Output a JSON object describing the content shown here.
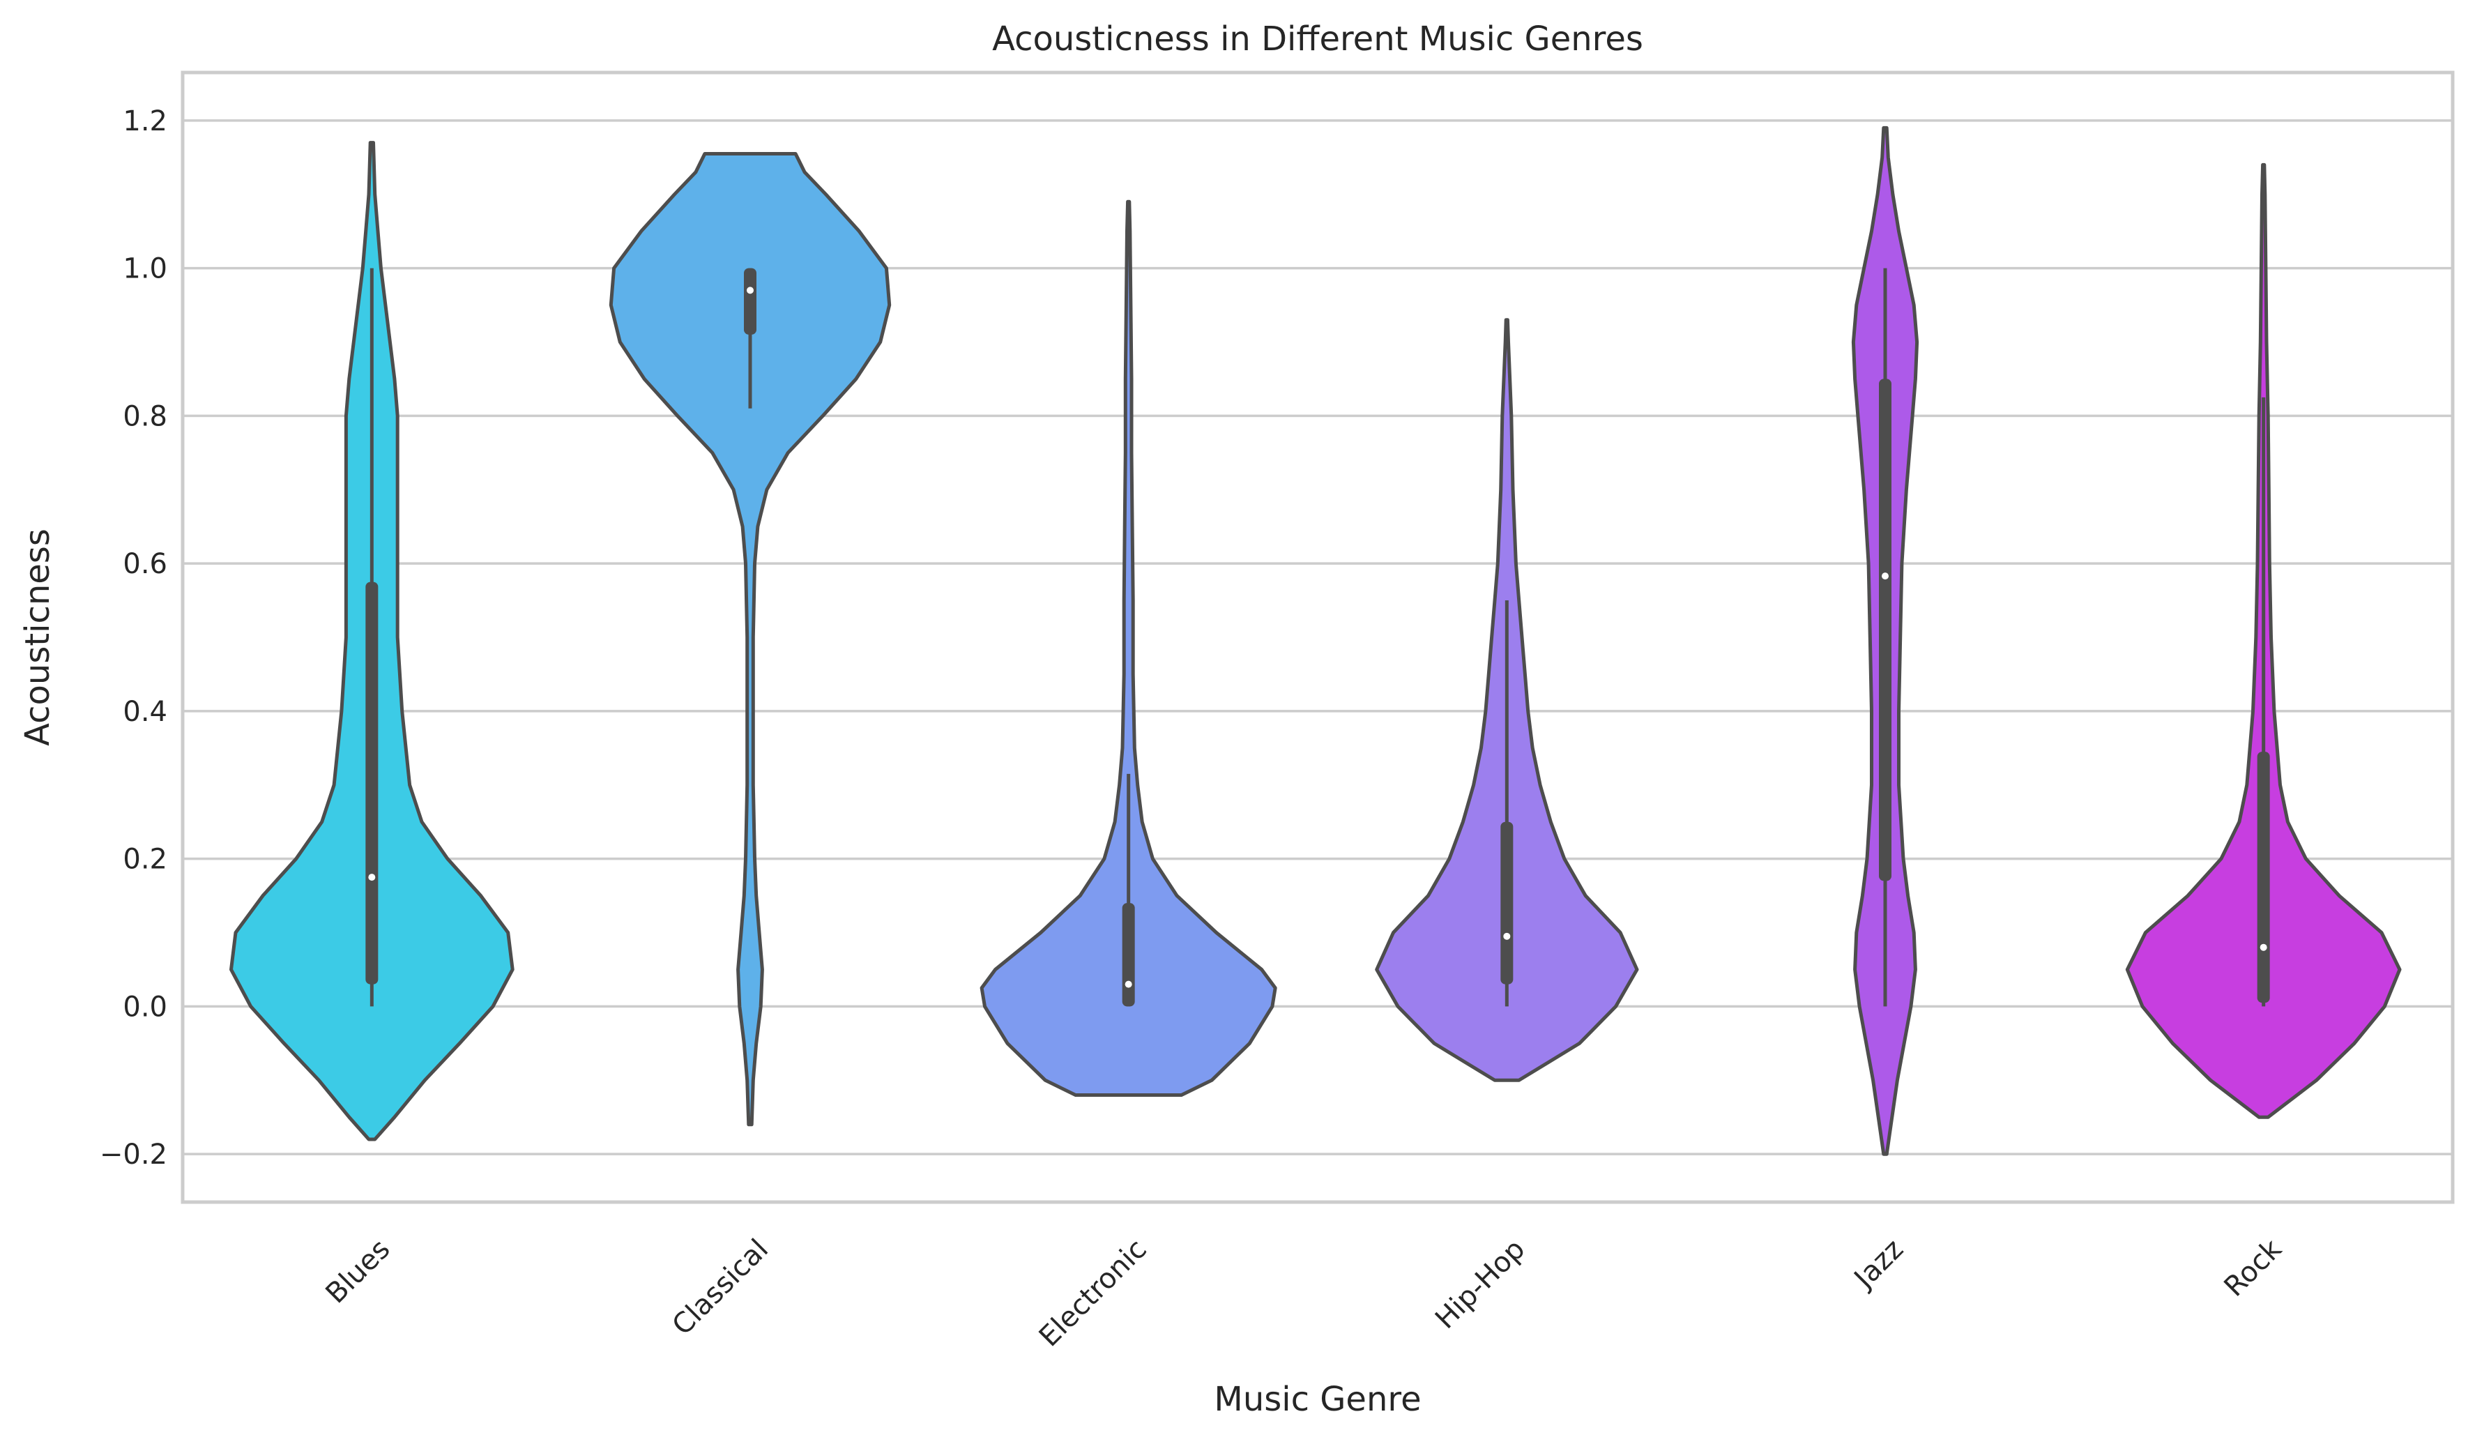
{
  "chart_data": {
    "type": "violin",
    "title": "Acousticness in Different Music Genres",
    "xlabel": "Music Genre",
    "ylabel": "Acousticness",
    "ylim": [
      -0.265,
      1.265
    ],
    "yticks": [
      -0.2,
      0.0,
      0.2,
      0.4,
      0.6,
      0.8,
      1.0,
      1.2
    ],
    "ytick_labels": [
      "−0.2",
      "0.0",
      "0.2",
      "0.4",
      "0.6",
      "0.8",
      "1.0",
      "1.2"
    ],
    "grid": "horizontal",
    "categories": [
      "Blues",
      "Classical",
      "Electronic",
      "Hip-Hop",
      "Jazz",
      "Rock"
    ],
    "colors": [
      "#3ccbe6",
      "#5eb1ea",
      "#7e9bf0",
      "#9c7fee",
      "#ad5ae9",
      "#c73ee0"
    ],
    "outline_color": "#4d4d4d",
    "violins": [
      {
        "name": "Blues",
        "kde_min": -0.18,
        "kde_max": 1.17,
        "box": {
          "q1": 0.03,
          "median": 0.175,
          "q3": 0.575,
          "whisker_low": 0.0,
          "whisker_high": 1.0
        },
        "profile": [
          [
            -0.18,
            0.02
          ],
          [
            -0.15,
            0.15
          ],
          [
            -0.1,
            0.35
          ],
          [
            -0.05,
            0.58
          ],
          [
            0.0,
            0.8
          ],
          [
            0.05,
            0.93
          ],
          [
            0.1,
            0.9
          ],
          [
            0.15,
            0.72
          ],
          [
            0.2,
            0.5
          ],
          [
            0.25,
            0.33
          ],
          [
            0.3,
            0.25
          ],
          [
            0.4,
            0.2
          ],
          [
            0.5,
            0.17
          ],
          [
            0.6,
            0.17
          ],
          [
            0.7,
            0.17
          ],
          [
            0.8,
            0.17
          ],
          [
            0.85,
            0.15
          ],
          [
            0.9,
            0.12
          ],
          [
            0.95,
            0.09
          ],
          [
            1.0,
            0.06
          ],
          [
            1.05,
            0.04
          ],
          [
            1.1,
            0.02
          ],
          [
            1.17,
            0.01
          ]
        ]
      },
      {
        "name": "Classical",
        "kde_min": -0.16,
        "kde_max": 1.155,
        "box": {
          "q1": 0.91,
          "median": 0.97,
          "q3": 1.0,
          "whisker_low": 0.81,
          "whisker_high": 1.0
        },
        "profile": [
          [
            -0.16,
            0.01
          ],
          [
            -0.1,
            0.02
          ],
          [
            -0.05,
            0.04
          ],
          [
            0.0,
            0.07
          ],
          [
            0.05,
            0.08
          ],
          [
            0.1,
            0.06
          ],
          [
            0.15,
            0.04
          ],
          [
            0.2,
            0.03
          ],
          [
            0.3,
            0.02
          ],
          [
            0.4,
            0.02
          ],
          [
            0.5,
            0.02
          ],
          [
            0.6,
            0.03
          ],
          [
            0.65,
            0.05
          ],
          [
            0.7,
            0.11
          ],
          [
            0.75,
            0.25
          ],
          [
            0.8,
            0.48
          ],
          [
            0.85,
            0.7
          ],
          [
            0.9,
            0.86
          ],
          [
            0.95,
            0.92
          ],
          [
            1.0,
            0.9
          ],
          [
            1.05,
            0.72
          ],
          [
            1.1,
            0.5
          ],
          [
            1.13,
            0.36
          ],
          [
            1.155,
            0.3
          ]
        ]
      },
      {
        "name": "Electronic",
        "kde_min": -0.12,
        "kde_max": 1.09,
        "box": {
          "q1": 0.0,
          "median": 0.03,
          "q3": 0.14,
          "whisker_low": 0.0,
          "whisker_high": 0.315
        },
        "profile": [
          [
            -0.12,
            0.35
          ],
          [
            -0.1,
            0.55
          ],
          [
            -0.05,
            0.8
          ],
          [
            0.0,
            0.95
          ],
          [
            0.025,
            0.97
          ],
          [
            0.05,
            0.88
          ],
          [
            0.1,
            0.58
          ],
          [
            0.15,
            0.32
          ],
          [
            0.2,
            0.16
          ],
          [
            0.25,
            0.09
          ],
          [
            0.3,
            0.06
          ],
          [
            0.35,
            0.04
          ],
          [
            0.45,
            0.03
          ],
          [
            0.55,
            0.03
          ],
          [
            0.65,
            0.025
          ],
          [
            0.75,
            0.02
          ],
          [
            0.85,
            0.02
          ],
          [
            0.95,
            0.015
          ],
          [
            1.05,
            0.01
          ],
          [
            1.09,
            0.005
          ]
        ]
      },
      {
        "name": "Hip-Hop",
        "kde_min": -0.1,
        "kde_max": 0.93,
        "box": {
          "q1": 0.03,
          "median": 0.095,
          "q3": 0.25,
          "whisker_low": 0.0,
          "whisker_high": 0.55
        },
        "profile": [
          [
            -0.1,
            0.08
          ],
          [
            -0.05,
            0.48
          ],
          [
            0.0,
            0.72
          ],
          [
            0.05,
            0.86
          ],
          [
            0.1,
            0.75
          ],
          [
            0.15,
            0.52
          ],
          [
            0.2,
            0.38
          ],
          [
            0.25,
            0.29
          ],
          [
            0.3,
            0.22
          ],
          [
            0.35,
            0.17
          ],
          [
            0.4,
            0.14
          ],
          [
            0.45,
            0.12
          ],
          [
            0.5,
            0.1
          ],
          [
            0.55,
            0.08
          ],
          [
            0.6,
            0.06
          ],
          [
            0.7,
            0.04
          ],
          [
            0.8,
            0.03
          ],
          [
            0.9,
            0.01
          ],
          [
            0.93,
            0.005
          ]
        ]
      },
      {
        "name": "Jazz",
        "kde_min": -0.2,
        "kde_max": 1.19,
        "box": {
          "q1": 0.17,
          "median": 0.583,
          "q3": 0.85,
          "whisker_low": 0.0,
          "whisker_high": 1.0
        },
        "profile": [
          [
            -0.2,
            0.01
          ],
          [
            -0.1,
            0.08
          ],
          [
            0.0,
            0.17
          ],
          [
            0.05,
            0.2
          ],
          [
            0.1,
            0.19
          ],
          [
            0.15,
            0.15
          ],
          [
            0.2,
            0.12
          ],
          [
            0.3,
            0.09
          ],
          [
            0.4,
            0.09
          ],
          [
            0.5,
            0.1
          ],
          [
            0.6,
            0.11
          ],
          [
            0.7,
            0.14
          ],
          [
            0.8,
            0.18
          ],
          [
            0.85,
            0.2
          ],
          [
            0.9,
            0.21
          ],
          [
            0.95,
            0.19
          ],
          [
            1.0,
            0.14
          ],
          [
            1.05,
            0.09
          ],
          [
            1.1,
            0.05
          ],
          [
            1.15,
            0.02
          ],
          [
            1.19,
            0.01
          ]
        ]
      },
      {
        "name": "Rock",
        "kde_min": -0.15,
        "kde_max": 1.14,
        "box": {
          "q1": 0.005,
          "median": 0.08,
          "q3": 0.345,
          "whisker_low": 0.0,
          "whisker_high": 0.825
        },
        "profile": [
          [
            -0.15,
            0.03
          ],
          [
            -0.1,
            0.35
          ],
          [
            -0.05,
            0.6
          ],
          [
            0.0,
            0.8
          ],
          [
            0.05,
            0.9
          ],
          [
            0.1,
            0.78
          ],
          [
            0.15,
            0.5
          ],
          [
            0.2,
            0.28
          ],
          [
            0.25,
            0.16
          ],
          [
            0.3,
            0.11
          ],
          [
            0.4,
            0.07
          ],
          [
            0.5,
            0.05
          ],
          [
            0.6,
            0.04
          ],
          [
            0.7,
            0.035
          ],
          [
            0.8,
            0.03
          ],
          [
            0.9,
            0.02
          ],
          [
            1.0,
            0.015
          ],
          [
            1.1,
            0.01
          ],
          [
            1.14,
            0.005
          ]
        ]
      }
    ]
  }
}
